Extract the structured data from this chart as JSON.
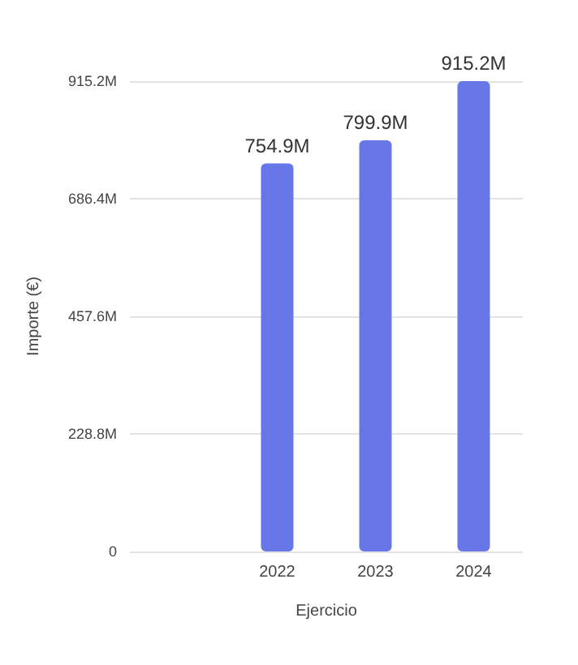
{
  "chart_data": {
    "type": "bar",
    "xlabel": "Ejercicio",
    "ylabel": "Importe (€)",
    "categories": [
      null,
      "2022",
      "2023",
      "2024"
    ],
    "values": [
      null,
      754.9,
      799.9,
      915.2
    ],
    "value_labels": [
      null,
      "754.9M",
      "799.9M",
      "915.2M"
    ],
    "color": "#6877e8",
    "ylim": [
      0,
      915.2
    ],
    "yticks": [
      {
        "value": 0,
        "label": "0"
      },
      {
        "value": 228.8,
        "label": "228.8M"
      },
      {
        "value": 457.6,
        "label": "457.6M"
      },
      {
        "value": 686.4,
        "label": "686.4M"
      },
      {
        "value": 915.2,
        "label": "915.2M"
      }
    ],
    "grid": "y"
  }
}
